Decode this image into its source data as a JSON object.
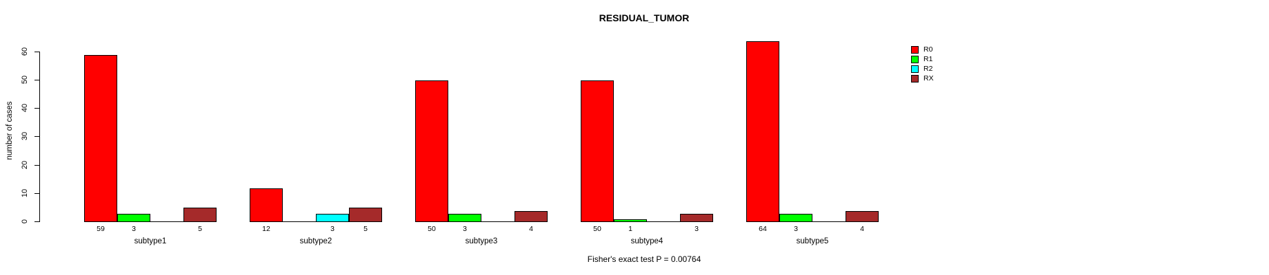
{
  "title": "RESIDUAL_TUMOR",
  "y_axis": {
    "label": "number of cases",
    "ticks": [
      0,
      10,
      20,
      30,
      40,
      50,
      60
    ]
  },
  "annotation": "Fisher's exact test P = 0.00764",
  "legend": {
    "position": "top-right-outside",
    "items": [
      {
        "label": "R0",
        "color": "#ff0000"
      },
      {
        "label": "R1",
        "color": "#00ff00"
      },
      {
        "label": "R2",
        "color": "#00ffff"
      },
      {
        "label": "RX",
        "color": "#a52a2a"
      }
    ]
  },
  "chart_data": {
    "type": "bar",
    "title": "RESIDUAL_TUMOR",
    "xlabel": "",
    "ylabel": "number of cases",
    "categories": [
      "subtype1",
      "subtype2",
      "subtype3",
      "subtype4",
      "subtype5"
    ],
    "series": [
      {
        "name": "R0",
        "color": "#ff0000",
        "values": [
          59,
          12,
          50,
          50,
          64
        ]
      },
      {
        "name": "R1",
        "color": "#00ff00",
        "values": [
          3,
          0,
          3,
          1,
          3
        ]
      },
      {
        "name": "R2",
        "color": "#00ffff",
        "values": [
          0,
          3,
          0,
          0,
          0
        ]
      },
      {
        "name": "RX",
        "color": "#a52a2a",
        "values": [
          5,
          5,
          4,
          3,
          4
        ]
      }
    ],
    "ylim": [
      0,
      60
    ],
    "yticks": [
      0,
      10,
      20,
      30,
      40,
      50,
      60
    ],
    "grid": false,
    "bar_orientation": "vertical-grouped",
    "value_labels": "value printed under each bar, omitted when value is 0",
    "legend_position": "right",
    "annotation": "Fisher's exact test P = 0.00764"
  }
}
